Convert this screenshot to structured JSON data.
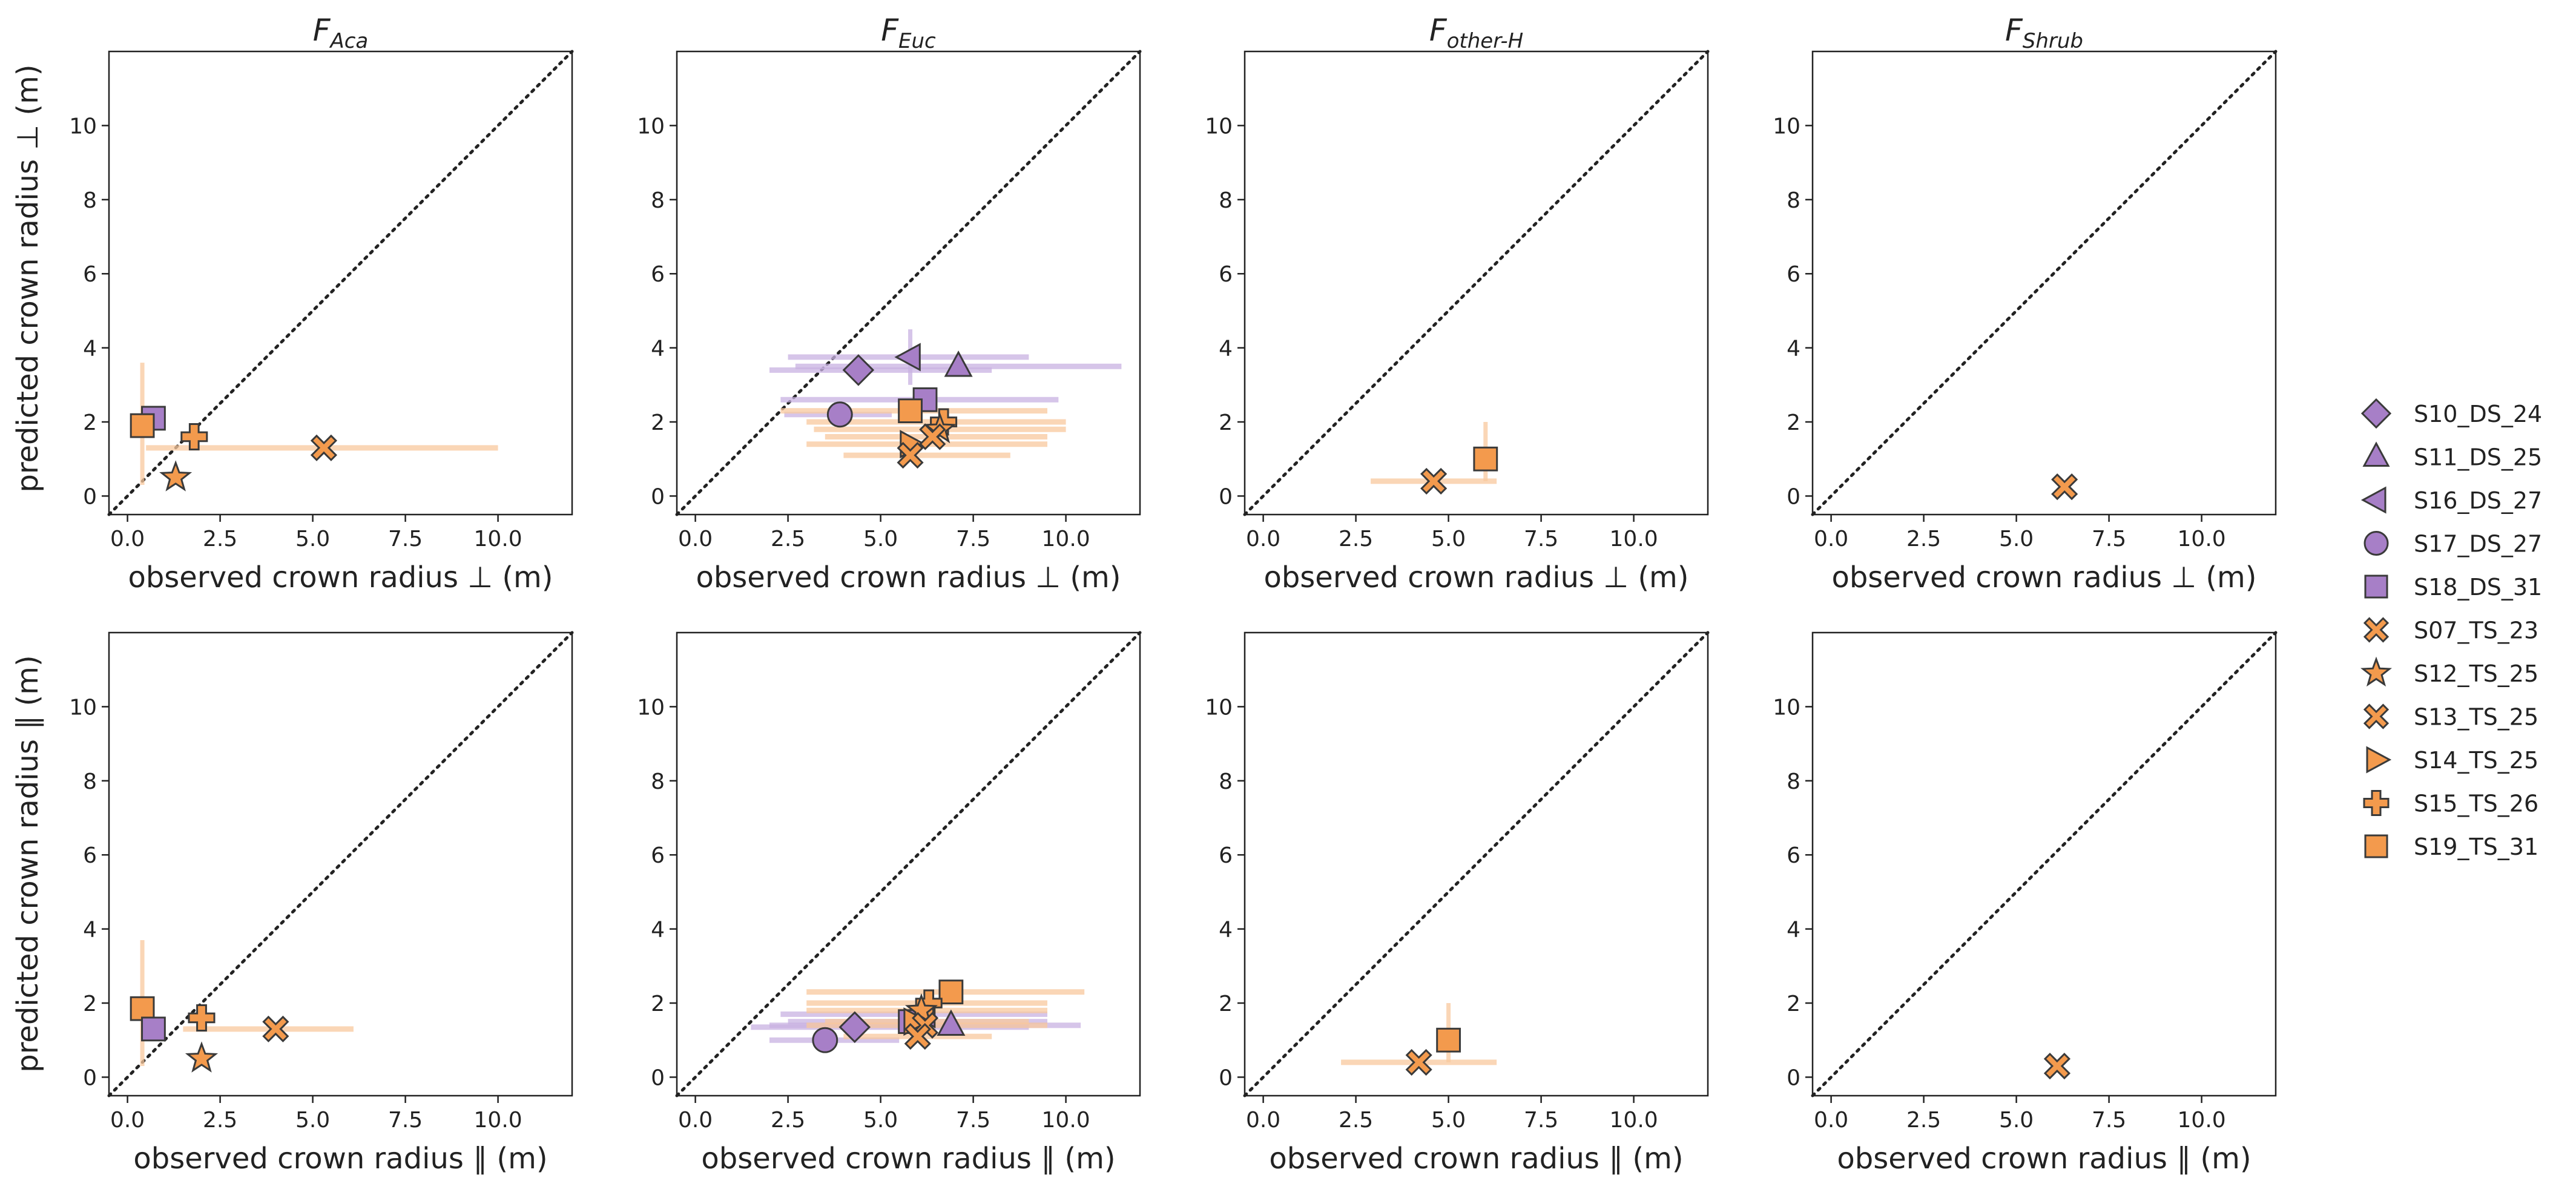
{
  "colors": {
    "DS": "#a77fc7",
    "TS": "#f39a4d",
    "DS_err": "#c9b2e2",
    "TS_err": "#f9c99e",
    "edge": "#3a3a3a"
  },
  "ylabels": [
    "predicted crown radius ⊥ (m)",
    "predicted crown radius ∥ (m)"
  ],
  "legend": [
    {
      "name": "S10_DS_24",
      "marker": "diamond",
      "group": "DS"
    },
    {
      "name": "S11_DS_25",
      "marker": "triangle-up",
      "group": "DS"
    },
    {
      "name": "S16_DS_27",
      "marker": "triangle-left",
      "group": "DS"
    },
    {
      "name": "S17_DS_27",
      "marker": "circle",
      "group": "DS"
    },
    {
      "name": "S18_DS_31",
      "marker": "square",
      "group": "DS"
    },
    {
      "name": "S07_TS_23",
      "marker": "x",
      "group": "TS"
    },
    {
      "name": "S12_TS_25",
      "marker": "star",
      "group": "TS"
    },
    {
      "name": "S13_TS_25",
      "marker": "x",
      "group": "TS"
    },
    {
      "name": "S14_TS_25",
      "marker": "triangle-right",
      "group": "TS"
    },
    {
      "name": "S15_TS_26",
      "marker": "plus",
      "group": "TS"
    },
    {
      "name": "S19_TS_31",
      "marker": "square",
      "group": "TS"
    }
  ],
  "chart_data": [
    {
      "type": "scatter",
      "title": "F",
      "title_sub": "Aca",
      "xlabel": "observed crown radius ⊥ (m)",
      "ylabel": "predicted crown radius ⊥ (m)",
      "xlim": [
        -0.5,
        12
      ],
      "ylim": [
        -0.5,
        12
      ],
      "xticks": [
        0,
        2.5,
        5,
        7.5,
        10
      ],
      "xticklabels": [
        "0.0",
        "2.5",
        "5.0",
        "7.5",
        "10.0"
      ],
      "yticks": [
        0,
        2,
        4,
        6,
        8,
        10
      ],
      "yticklabels": [
        "0",
        "2",
        "4",
        "6",
        "8",
        "10"
      ],
      "diagonal": true,
      "points": [
        {
          "series": "S18_DS_31",
          "x": 0.7,
          "y": 2.1
        },
        {
          "series": "S19_TS_31",
          "x": 0.4,
          "y": 1.9,
          "yerr": [
            0.3,
            3.6
          ]
        },
        {
          "series": "S15_TS_26",
          "x": 1.8,
          "y": 1.6
        },
        {
          "series": "S12_TS_25",
          "x": 1.3,
          "y": 0.5
        },
        {
          "series": "S13_TS_25",
          "x": 5.3,
          "y": 1.3,
          "xerr": [
            0.5,
            10.0
          ]
        }
      ]
    },
    {
      "type": "scatter",
      "title": "F",
      "title_sub": "Euc",
      "xlabel": "observed crown radius ⊥ (m)",
      "ylabel": "",
      "xlim": [
        -0.5,
        12
      ],
      "ylim": [
        -0.5,
        12
      ],
      "xticks": [
        0,
        2.5,
        5,
        7.5,
        10
      ],
      "xticklabels": [
        "0.0",
        "2.5",
        "5.0",
        "7.5",
        "10.0"
      ],
      "yticks": [
        0,
        2,
        4,
        6,
        8,
        10
      ],
      "yticklabels": [
        "0",
        "2",
        "4",
        "6",
        "8",
        "10"
      ],
      "diagonal": true,
      "points": [
        {
          "series": "S10_DS_24",
          "x": 4.4,
          "y": 3.4,
          "xerr": [
            2.0,
            8.0
          ]
        },
        {
          "series": "S16_DS_27",
          "x": 5.8,
          "y": 3.75,
          "xerr": [
            2.5,
            9.0
          ],
          "yerr": [
            3.0,
            4.5
          ]
        },
        {
          "series": "S11_DS_25",
          "x": 7.1,
          "y": 3.5,
          "xerr": [
            2.7,
            11.5
          ]
        },
        {
          "series": "S18_DS_31",
          "x": 6.2,
          "y": 2.6,
          "xerr": [
            2.3,
            9.8
          ]
        },
        {
          "series": "S17_DS_27",
          "x": 3.9,
          "y": 2.2,
          "xerr": [
            2.4,
            5.3
          ]
        },
        {
          "series": "S19_TS_31",
          "x": 5.8,
          "y": 2.3,
          "xerr": [
            2.3,
            9.5
          ]
        },
        {
          "series": "S15_TS_26",
          "x": 6.7,
          "y": 2.0,
          "xerr": [
            3.0,
            10.0
          ]
        },
        {
          "series": "S12_TS_25",
          "x": 6.6,
          "y": 1.8,
          "xerr": [
            3.2,
            10.0
          ]
        },
        {
          "series": "S14_TS_25",
          "x": 5.8,
          "y": 1.4,
          "xerr": [
            3.0,
            9.5
          ]
        },
        {
          "series": "S07_TS_23",
          "x": 6.4,
          "y": 1.6,
          "xerr": [
            3.5,
            9.5
          ]
        },
        {
          "series": "S13_TS_25",
          "x": 5.8,
          "y": 1.1,
          "xerr": [
            4.0,
            8.5
          ]
        }
      ]
    },
    {
      "type": "scatter",
      "title": "F",
      "title_sub": "other-H",
      "xlabel": "observed crown radius ⊥ (m)",
      "ylabel": "",
      "xlim": [
        -0.5,
        12
      ],
      "ylim": [
        -0.5,
        12
      ],
      "xticks": [
        0,
        2.5,
        5,
        7.5,
        10
      ],
      "xticklabels": [
        "0.0",
        "2.5",
        "5.0",
        "7.5",
        "10.0"
      ],
      "yticks": [
        0,
        2,
        4,
        6,
        8,
        10
      ],
      "yticklabels": [
        "0",
        "2",
        "4",
        "6",
        "8",
        "10"
      ],
      "diagonal": true,
      "points": [
        {
          "series": "S13_TS_25",
          "x": 4.6,
          "y": 0.4,
          "xerr": [
            2.9,
            6.3
          ]
        },
        {
          "series": "S19_TS_31",
          "x": 6.0,
          "y": 1.0,
          "yerr": [
            0.4,
            2.0
          ]
        }
      ]
    },
    {
      "type": "scatter",
      "title": "F",
      "title_sub": "Shrub",
      "xlabel": "observed crown radius ⊥ (m)",
      "ylabel": "",
      "xlim": [
        -0.5,
        12
      ],
      "ylim": [
        -0.5,
        12
      ],
      "xticks": [
        0,
        2.5,
        5,
        7.5,
        10
      ],
      "xticklabels": [
        "0.0",
        "2.5",
        "5.0",
        "7.5",
        "10.0"
      ],
      "yticks": [
        0,
        2,
        4,
        6,
        8,
        10
      ],
      "yticklabels": [
        "0",
        "2",
        "4",
        "6",
        "8",
        "10"
      ],
      "diagonal": true,
      "points": [
        {
          "series": "S07_TS_23",
          "x": 6.3,
          "y": 0.25
        }
      ]
    },
    {
      "type": "scatter",
      "title": "",
      "title_sub": "",
      "xlabel": "observed crown radius ∥ (m)",
      "ylabel": "predicted crown radius ∥ (m)",
      "xlim": [
        -0.5,
        12
      ],
      "ylim": [
        -0.5,
        12
      ],
      "xticks": [
        0,
        2.5,
        5,
        7.5,
        10
      ],
      "xticklabels": [
        "0.0",
        "2.5",
        "5.0",
        "7.5",
        "10.0"
      ],
      "yticks": [
        0,
        2,
        4,
        6,
        8,
        10
      ],
      "yticklabels": [
        "0",
        "2",
        "4",
        "6",
        "8",
        "10"
      ],
      "diagonal": true,
      "points": [
        {
          "series": "S19_TS_31",
          "x": 0.4,
          "y": 1.85,
          "yerr": [
            0.3,
            3.7
          ]
        },
        {
          "series": "S18_DS_31",
          "x": 0.7,
          "y": 1.3
        },
        {
          "series": "S15_TS_26",
          "x": 2.0,
          "y": 1.6
        },
        {
          "series": "S12_TS_25",
          "x": 2.0,
          "y": 0.5
        },
        {
          "series": "S13_TS_25",
          "x": 4.0,
          "y": 1.3,
          "xerr": [
            1.5,
            6.1
          ]
        }
      ]
    },
    {
      "type": "scatter",
      "title": "",
      "title_sub": "",
      "xlabel": "observed crown radius ∥ (m)",
      "ylabel": "",
      "xlim": [
        -0.5,
        12
      ],
      "ylim": [
        -0.5,
        12
      ],
      "xticks": [
        0,
        2.5,
        5,
        7.5,
        10
      ],
      "xticklabels": [
        "0.0",
        "2.5",
        "5.0",
        "7.5",
        "10.0"
      ],
      "yticks": [
        0,
        2,
        4,
        6,
        8,
        10
      ],
      "yticklabels": [
        "0",
        "2",
        "4",
        "6",
        "8",
        "10"
      ],
      "diagonal": true,
      "points": [
        {
          "series": "S17_DS_27",
          "x": 3.5,
          "y": 1.0,
          "xerr": [
            2.0,
            5.5
          ]
        },
        {
          "series": "S10_DS_24",
          "x": 4.3,
          "y": 1.35,
          "xerr": [
            1.5,
            9.0
          ]
        },
        {
          "series": "S11_DS_25",
          "x": 6.9,
          "y": 1.4,
          "xerr": [
            2.0,
            10.4
          ]
        },
        {
          "series": "S16_DS_27",
          "x": 6.2,
          "y": 1.7,
          "xerr": [
            2.3,
            9.5
          ]
        },
        {
          "series": "S18_DS_31",
          "x": 5.8,
          "y": 1.5,
          "xerr": [
            2.5,
            9.5
          ]
        },
        {
          "series": "S19_TS_31",
          "x": 6.9,
          "y": 2.3,
          "xerr": [
            3.0,
            10.5
          ]
        },
        {
          "series": "S15_TS_26",
          "x": 6.3,
          "y": 2.0,
          "xerr": [
            3.0,
            9.5
          ]
        },
        {
          "series": "S12_TS_25",
          "x": 6.1,
          "y": 1.8,
          "xerr": [
            3.0,
            9.5
          ]
        },
        {
          "series": "S14_TS_25",
          "x": 5.9,
          "y": 1.5,
          "xerr": [
            3.5,
            9.0
          ]
        },
        {
          "series": "S07_TS_23",
          "x": 6.2,
          "y": 1.4,
          "xerr": [
            3.0,
            9.5
          ]
        },
        {
          "series": "S13_TS_25",
          "x": 6.0,
          "y": 1.1,
          "xerr": [
            4.0,
            8.0
          ]
        }
      ]
    },
    {
      "type": "scatter",
      "title": "",
      "title_sub": "",
      "xlabel": "observed crown radius ∥ (m)",
      "ylabel": "",
      "xlim": [
        -0.5,
        12
      ],
      "ylim": [
        -0.5,
        12
      ],
      "xticks": [
        0,
        2.5,
        5,
        7.5,
        10
      ],
      "xticklabels": [
        "0.0",
        "2.5",
        "5.0",
        "7.5",
        "10.0"
      ],
      "yticks": [
        0,
        2,
        4,
        6,
        8,
        10
      ],
      "yticklabels": [
        "0",
        "2",
        "4",
        "6",
        "8",
        "10"
      ],
      "diagonal": true,
      "points": [
        {
          "series": "S13_TS_25",
          "x": 4.2,
          "y": 0.4,
          "xerr": [
            2.1,
            6.3
          ]
        },
        {
          "series": "S19_TS_31",
          "x": 5.0,
          "y": 1.0,
          "yerr": [
            0.4,
            2.0
          ]
        }
      ]
    },
    {
      "type": "scatter",
      "title": "",
      "title_sub": "",
      "xlabel": "observed crown radius ∥ (m)",
      "ylabel": "",
      "xlim": [
        -0.5,
        12
      ],
      "ylim": [
        -0.5,
        12
      ],
      "xticks": [
        0,
        2.5,
        5,
        7.5,
        10
      ],
      "xticklabels": [
        "0.0",
        "2.5",
        "5.0",
        "7.5",
        "10.0"
      ],
      "yticks": [
        0,
        2,
        4,
        6,
        8,
        10
      ],
      "yticklabels": [
        "0",
        "2",
        "4",
        "6",
        "8",
        "10"
      ],
      "diagonal": true,
      "points": [
        {
          "series": "S07_TS_23",
          "x": 6.1,
          "y": 0.3
        }
      ]
    }
  ]
}
